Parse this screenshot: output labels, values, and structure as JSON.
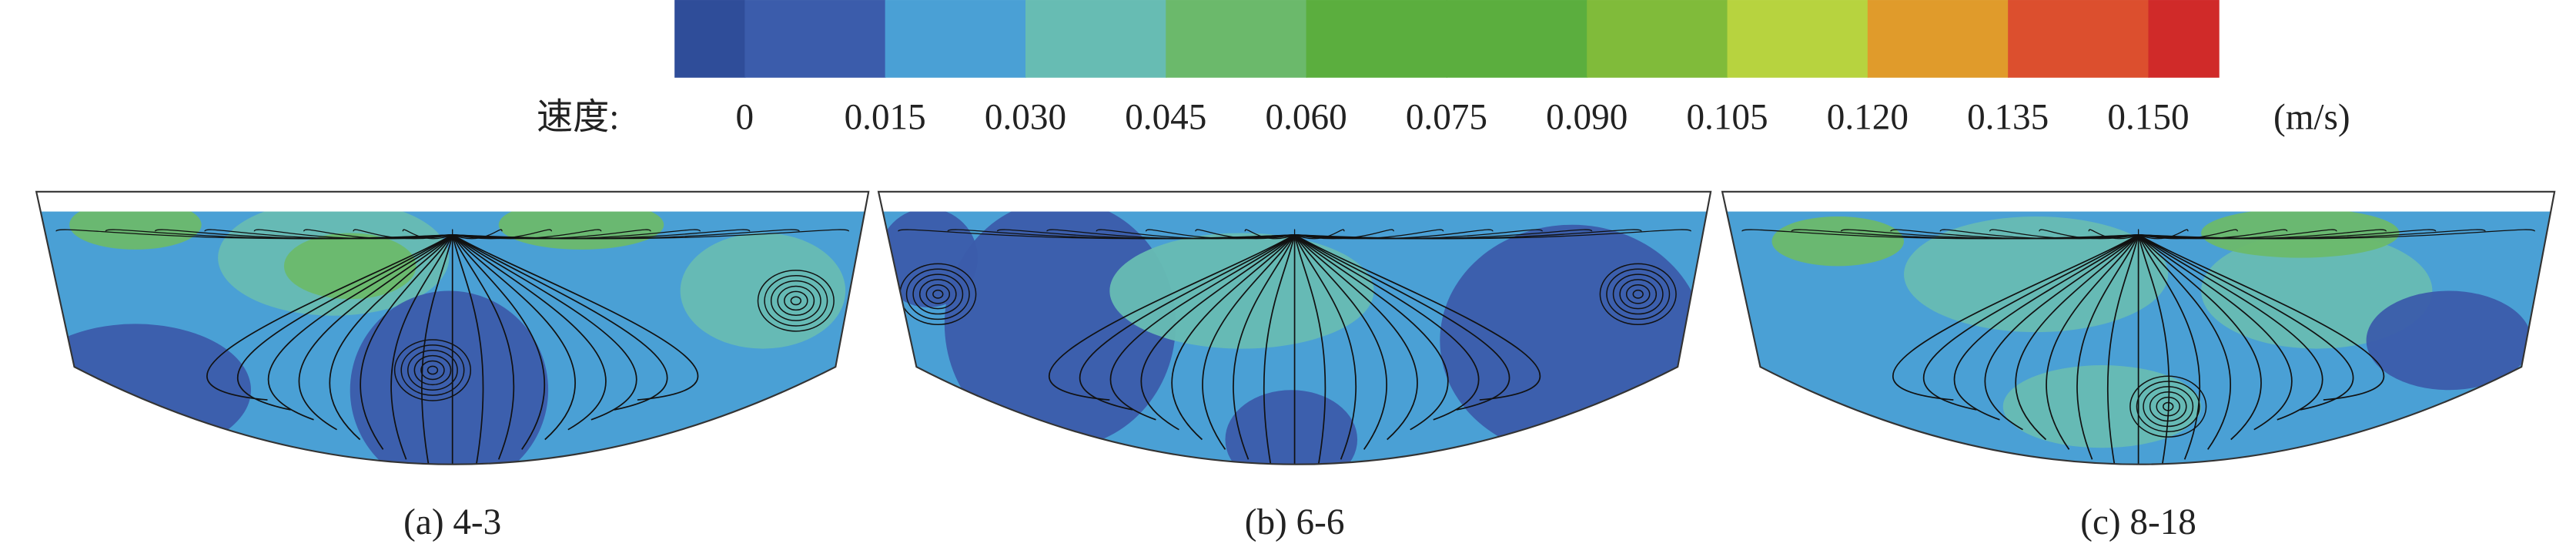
{
  "colorbar": {
    "label": "速度:",
    "unit": "(m/s)",
    "colors": [
      "#2f4d99",
      "#3b5cab",
      "#4aa0d5",
      "#67bcb3",
      "#6bb96b",
      "#5bae3e",
      "#5bae3e",
      "#80bb3a",
      "#b7d33f",
      "#e09b2b",
      "#dc4f2e",
      "#d02a29"
    ],
    "ticks": [
      0,
      0.015,
      {
        "value": 0.03,
        "label": "0.030"
      },
      0.045,
      {
        "value": 0.06,
        "label": "0.060"
      },
      0.075,
      {
        "value": 0.09,
        "label": "0.090"
      },
      0.105,
      {
        "value": 0.12,
        "label": "0.120"
      },
      0.135,
      {
        "value": 0.15,
        "label": "0.150"
      }
    ]
  },
  "panels": [
    {
      "label": "(a) 4-3"
    },
    {
      "label": "(b) 6-6"
    },
    {
      "label": "(c) 8-18"
    }
  ]
}
